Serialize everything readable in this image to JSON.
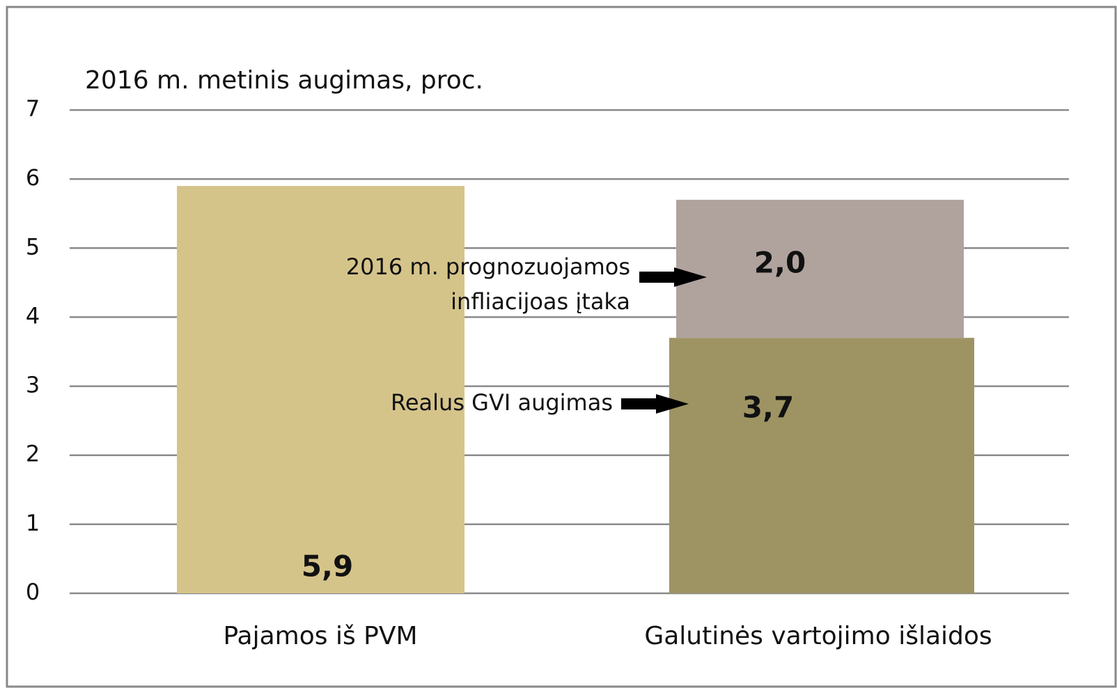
{
  "chart_data": {
    "type": "stacked_bar",
    "title": "2016 m. metinis augimas, proc.",
    "categories": [
      "Pajamos iš PVM",
      "Galutinės vartojimo išlaidos"
    ],
    "series": [
      {
        "colors": [
          "#d5c48a",
          "#9e9463"
        ],
        "values": [
          5.9,
          3.7
        ],
        "value_labels": [
          "5,9",
          "3,7"
        ]
      },
      {
        "color": "#b0a39e",
        "values": [
          null,
          2.0
        ],
        "value_labels": [
          null,
          "2,0"
        ]
      }
    ],
    "annotations": [
      [
        "2016 m. prognozuojamos",
        "infliacijoas įtaka"
      ],
      [
        "Realus GVI augimas"
      ]
    ],
    "ylim": [
      0,
      7
    ],
    "yticks": [
      0,
      1,
      2,
      3,
      4,
      5,
      6,
      7
    ],
    "grid": true
  }
}
